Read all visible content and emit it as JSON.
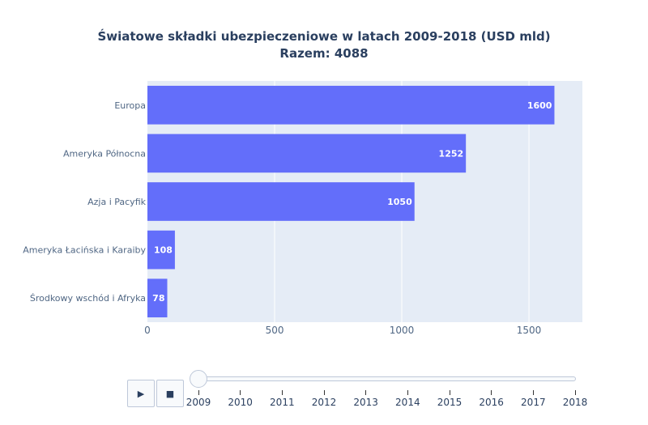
{
  "title_line1": "Światowe składki ubezpieczeniowe w latach 2009-2018 (USD mld)",
  "title_line2": "Razem: 4088",
  "chart_data": {
    "type": "bar",
    "orientation": "horizontal",
    "categories": [
      "Europa",
      "Ameryka Północna",
      "Azja i Pacyfik",
      "Ameryka Łacińska i Karaiby",
      "Środkowy wschód i Afryka"
    ],
    "values": [
      1600,
      1252,
      1050,
      108,
      78
    ],
    "xlim": [
      0,
      1710
    ],
    "xticks": [
      0,
      500,
      1000,
      1500
    ],
    "grid": true,
    "bar_color": "#636efa",
    "plot_bg": "#e5ecf6"
  },
  "controls": {
    "play_icon": "play-icon",
    "stop_icon": "stop-icon",
    "play_glyph": "▶",
    "stop_glyph": "■"
  },
  "slider": {
    "steps": [
      "2009",
      "2010",
      "2011",
      "2012",
      "2013",
      "2014",
      "2015",
      "2016",
      "2017",
      "2018"
    ],
    "current": "2009"
  }
}
